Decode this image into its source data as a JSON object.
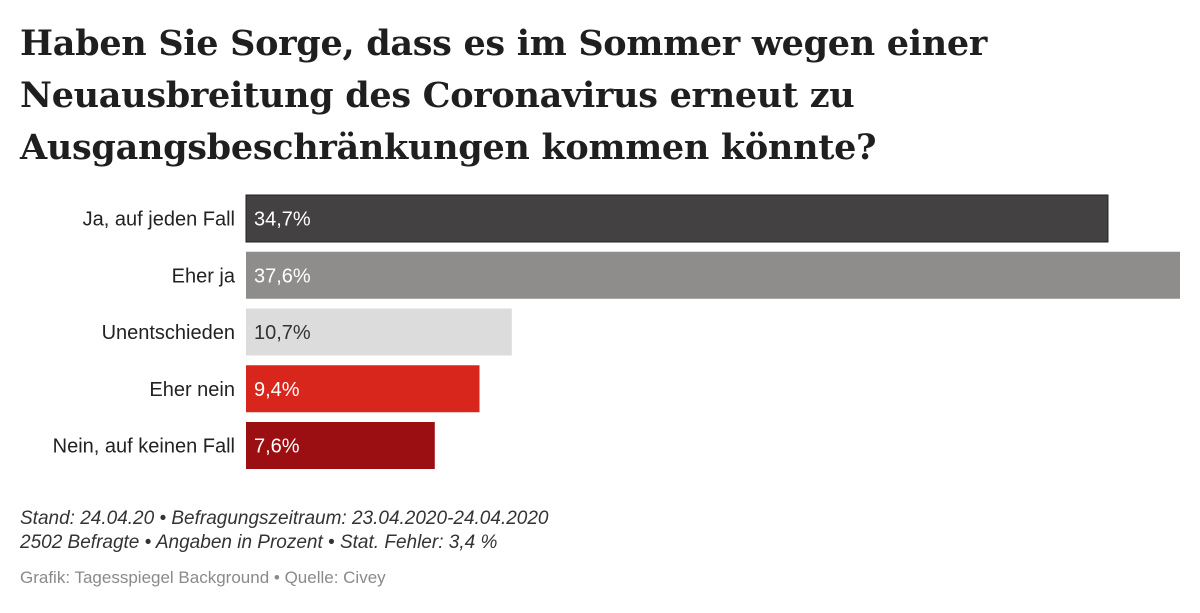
{
  "title_lines": [
    "Haben Sie Sorge, dass es im Sommer wegen einer",
    "Neuausbreitung des Coronavirus erneut zu",
    "Ausgangsbeschränkungen kommen könnte?"
  ],
  "chart_data": {
    "type": "bar",
    "orientation": "horizontal",
    "title": "Haben Sie Sorge, dass es im Sommer wegen einer Neuausbreitung des Coronavirus erneut zu Ausgangsbeschränkungen kommen könnte?",
    "categories": [
      "Ja, auf jeden Fall",
      "Eher ja",
      "Unentschieden",
      "Eher nein",
      "Nein, auf keinen Fall"
    ],
    "values": [
      34.7,
      37.6,
      10.7,
      9.4,
      7.6
    ],
    "value_labels": [
      "34,7%",
      "37,6%",
      "10,7%",
      "9,4%",
      "7,6%"
    ],
    "colors": [
      "#444142",
      "#8e8d8b",
      "#dcdcdc",
      "#d9261c",
      "#9b0e12"
    ],
    "label_colors": [
      "#ffffff",
      "#ffffff",
      "#333333",
      "#ffffff",
      "#ffffff"
    ],
    "xlim": [
      0,
      37.6
    ],
    "xlabel": "",
    "ylabel": "",
    "grid": false,
    "legend": "none"
  },
  "footer": {
    "line1": "Stand: 24.04.20 • Befragungszeitraum: 23.04.2020-24.04.2020",
    "line2": "2502 Befragte • Angaben in Prozent • Stat. Fehler: 3,4 %",
    "credit": "Grafik: Tagesspiegel Background • Quelle: Civey"
  }
}
